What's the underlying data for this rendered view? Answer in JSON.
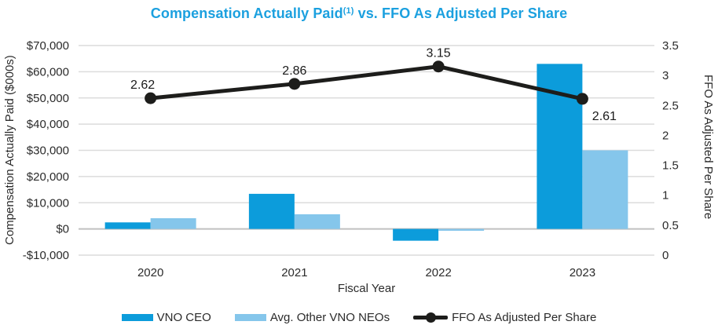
{
  "title": {
    "main": "Compensation Actually Paid",
    "superscript": "(1)",
    "rest": " vs. FFO As Adjusted Per Share"
  },
  "colors": {
    "title": "#1ba0df",
    "ceo_bar": "#0c9cdb",
    "neo_bar": "#85c6eb",
    "ffo_line": "#1d1d1b",
    "gridline": "#dcdcdc",
    "zero_line": "#c0c0c0",
    "tick_text": "#2b2b2b"
  },
  "chart_data": {
    "type": "bar+line combo",
    "categories": [
      "2020",
      "2021",
      "2022",
      "2023"
    ],
    "series": [
      {
        "name": "VNO CEO",
        "type": "bar",
        "axis": "left",
        "values": [
          2500,
          13400,
          -4500,
          63000
        ]
      },
      {
        "name": "Avg. Other VNO NEOs",
        "type": "bar",
        "axis": "left",
        "values": [
          4100,
          5600,
          -700,
          30000
        ]
      },
      {
        "name": "FFO As Adjusted Per Share",
        "type": "line",
        "axis": "right",
        "values": [
          2.62,
          2.86,
          3.15,
          2.61
        ],
        "point_labels": [
          "2.62",
          "2.86",
          "3.15",
          "2.61"
        ]
      }
    ],
    "left_axis": {
      "title": "Compensation Actually Paid ($000s)",
      "min": -10000,
      "max": 70000,
      "tick_step": 10000,
      "tick_labels": [
        "$70,000",
        "$60,000",
        "$50,000",
        "$40,000",
        "$30,000",
        "$20,000",
        "$10,000",
        "$0",
        "-$10,000"
      ]
    },
    "right_axis": {
      "title": "FFO As Adjusted Per Share",
      "min": 0,
      "max": 3.5,
      "tick_step": 0.5,
      "tick_labels": [
        "3.5",
        "3",
        "2.5",
        "2",
        "1.5",
        "1",
        "0.5",
        "0"
      ]
    },
    "xlabel": "Fiscal Year",
    "grid": true,
    "legend_position": "bottom"
  },
  "legend": {
    "items": [
      {
        "label": "VNO CEO",
        "swatch": "bar",
        "color": "#0c9cdb"
      },
      {
        "label": "Avg. Other VNO NEOs",
        "swatch": "bar",
        "color": "#85c6eb"
      },
      {
        "label": "FFO As Adjusted Per Share",
        "swatch": "line-marker",
        "color": "#1d1d1b"
      }
    ]
  }
}
